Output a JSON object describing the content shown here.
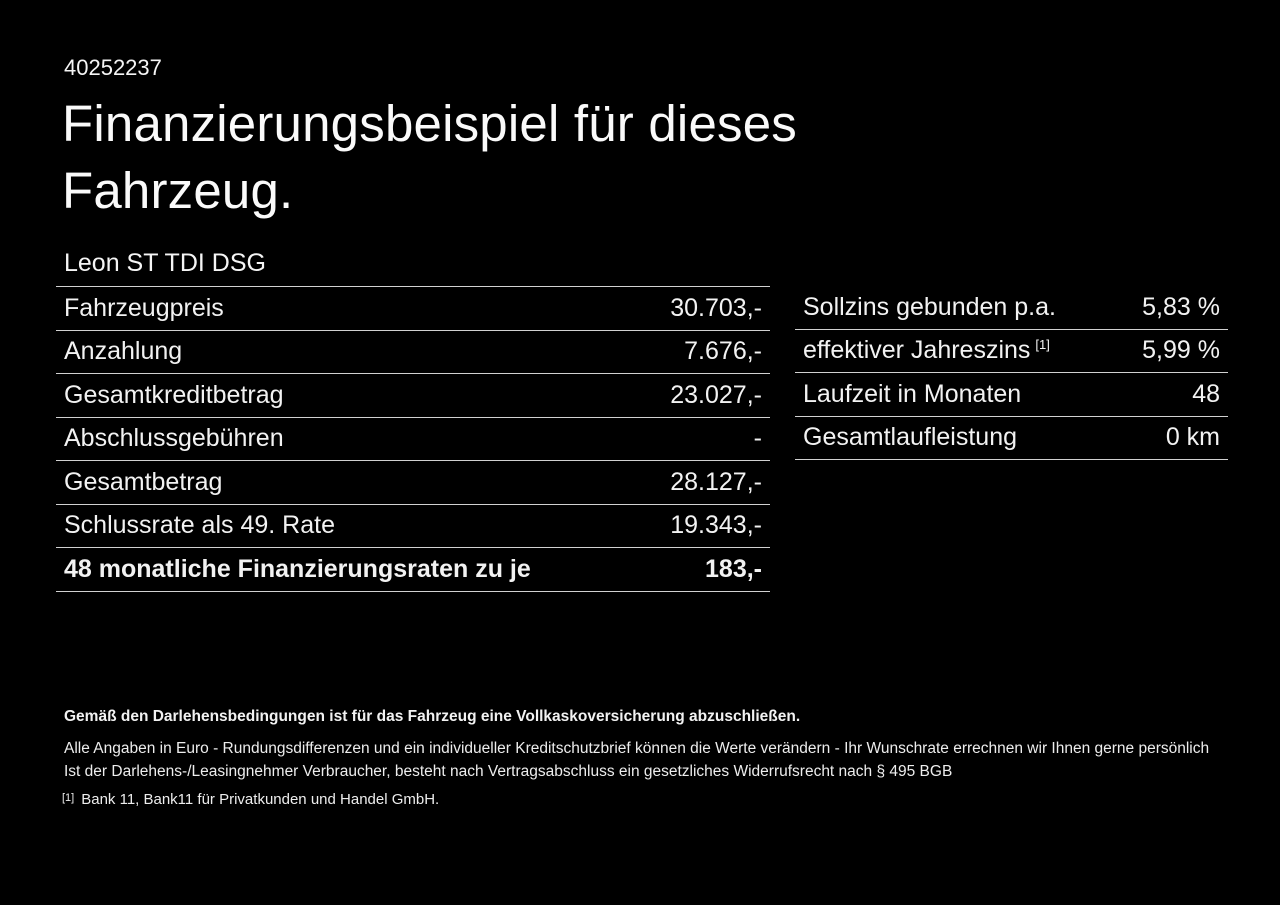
{
  "page": {
    "id": "40252237",
    "title_line1": "Finanzierungsbeispiel für dieses",
    "title_line2": "Fahrzeug.",
    "vehicle": "Leon ST TDI DSG"
  },
  "finance_table": {
    "rows": [
      {
        "label": "Fahrzeugpreis",
        "value": "30.703,-",
        "bold": false
      },
      {
        "label": "Anzahlung",
        "value": "7.676,-",
        "bold": false
      },
      {
        "label": "Gesamtkreditbetrag",
        "value": "23.027,-",
        "bold": false
      },
      {
        "label": "Abschlussgebühren",
        "value": "-",
        "bold": false
      },
      {
        "label": "Gesamtbetrag",
        "value": "28.127,-",
        "bold": false
      },
      {
        "label": "Schlussrate als 49. Rate",
        "value": "19.343,-",
        "bold": false
      },
      {
        "label": "48 monatliche Finanzierungsraten zu je",
        "value": "183,-",
        "bold": true
      }
    ]
  },
  "conditions_table": {
    "rows": [
      {
        "label": "Sollzins gebunden p.a.",
        "superscript": "",
        "value": "5,83 %"
      },
      {
        "label": "effektiver Jahreszins",
        "superscript": "[1]",
        "value": "5,99 %"
      },
      {
        "label": "Laufzeit in Monaten",
        "superscript": "",
        "value": "48"
      },
      {
        "label": "Gesamtlaufleistung",
        "superscript": "",
        "value": "0 km"
      }
    ]
  },
  "footer": {
    "bold_note": "Gemäß den Darlehensbedingungen ist für das Fahrzeug eine Vollkaskoversicherung abzuschließen.",
    "note_line1": "Alle Angaben in Euro - Rundungsdifferenzen und ein individueller Kreditschutzbrief können die Werte verändern - Ihr Wunschrate errechnen wir Ihnen gerne persönlich",
    "note_line2": "Ist der Darlehens-/Leasingnehmer Verbraucher, besteht nach Vertragsabschluss ein gesetzliches Widerrufsrecht nach § 495 BGB",
    "footnote_marker": "[1]",
    "footnote_text": "Bank 11, Bank11 für Privatkunden und Handel GmbH."
  },
  "colors": {
    "background": "#000000",
    "text": "#f5f5f5",
    "divider": "#d2d2d2"
  }
}
